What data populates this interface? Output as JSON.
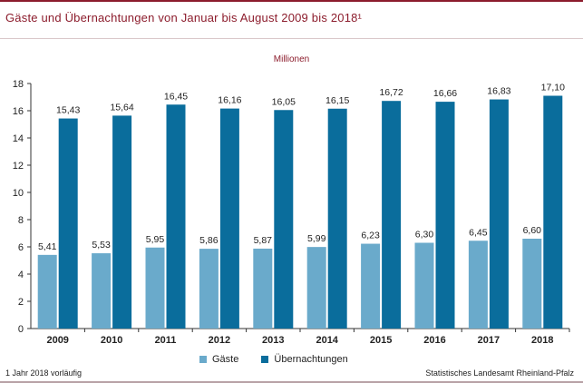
{
  "title": "Gäste und Übernachtungen von Januar bis August 2009 bis 2018¹",
  "unit_label": "Millionen",
  "footnote": "1 Jahr 2018 vorläufig",
  "source": "Statistisches Landesamt Rheinland-Pfalz",
  "colors": {
    "accent": "#8c1c2c",
    "gaeste": "#6aaacb",
    "uebernachtungen": "#0a6d9c"
  },
  "chart_data": {
    "type": "bar",
    "categories": [
      "2009",
      "2010",
      "2011",
      "2012",
      "2013",
      "2014",
      "2015",
      "2016",
      "2017",
      "2018"
    ],
    "series": [
      {
        "name": "Gäste",
        "values": [
          5.41,
          5.53,
          5.95,
          5.86,
          5.87,
          5.99,
          6.23,
          6.3,
          6.45,
          6.6
        ],
        "labels": [
          "5,41",
          "5,53",
          "5,95",
          "5,86",
          "5,87",
          "5,99",
          "6,23",
          "6,30",
          "6,45",
          "6,60"
        ]
      },
      {
        "name": "Übernachtungen",
        "values": [
          15.43,
          15.64,
          16.45,
          16.16,
          16.05,
          16.15,
          16.72,
          16.66,
          16.83,
          17.1
        ],
        "labels": [
          "15,43",
          "15,64",
          "16,45",
          "16,16",
          "16,05",
          "16,15",
          "16,72",
          "16,66",
          "16,83",
          "17,10"
        ]
      }
    ],
    "ylim": [
      0,
      18
    ],
    "yticks": [
      "0",
      "2",
      "4",
      "6",
      "8",
      "10",
      "12",
      "14",
      "16",
      "18"
    ],
    "grid": false,
    "legend_position": "bottom"
  }
}
